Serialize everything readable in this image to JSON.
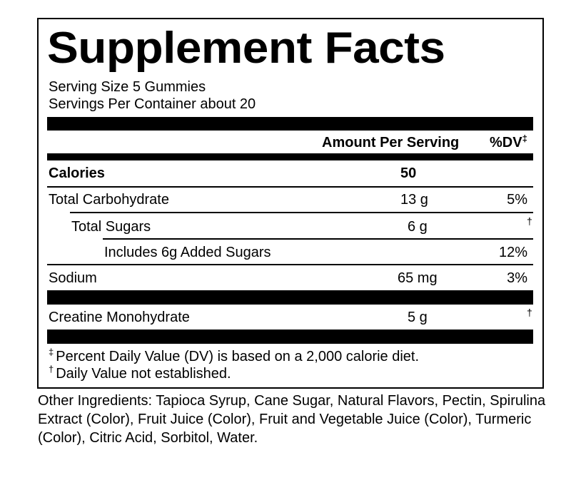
{
  "label": {
    "title": "Supplement Facts",
    "serving_size": "Serving Size 5 Gummies",
    "servings_per_container": "Servings Per Container about 20",
    "header_amount": "Amount Per Serving",
    "header_dv": "%DV",
    "header_dv_mark": "‡",
    "rows": [
      {
        "name": "Calories",
        "amount": "50",
        "dv": "",
        "dv_mark": ""
      },
      {
        "name": "Total Carbohydrate",
        "amount": "13 g",
        "dv": "5%",
        "dv_mark": ""
      },
      {
        "name": "Total Sugars",
        "amount": "6 g",
        "dv": "",
        "dv_mark": "†"
      },
      {
        "name": "Includes 6g Added Sugars",
        "amount": "",
        "dv": "12%",
        "dv_mark": ""
      },
      {
        "name": "Sodium",
        "amount": "65 mg",
        "dv": "3%",
        "dv_mark": ""
      },
      {
        "name": "Creatine Monohydrate",
        "amount": "5 g",
        "dv": "",
        "dv_mark": "†"
      }
    ],
    "footnotes": [
      {
        "mark": "‡",
        "text": "Percent Daily Value (DV) is based on a 2,000 calorie diet."
      },
      {
        "mark": "†",
        "text": "Daily Value not established."
      }
    ]
  },
  "other_ingredients": "Other Ingredients: Tapioca Syrup, Cane Sugar, Natural Flavors, Pectin, Spirulina Extract (Color), Fruit Juice (Color), Fruit and Vegetable Juice (Color), Turmeric (Color), Citric Acid, Sorbitol, Water."
}
